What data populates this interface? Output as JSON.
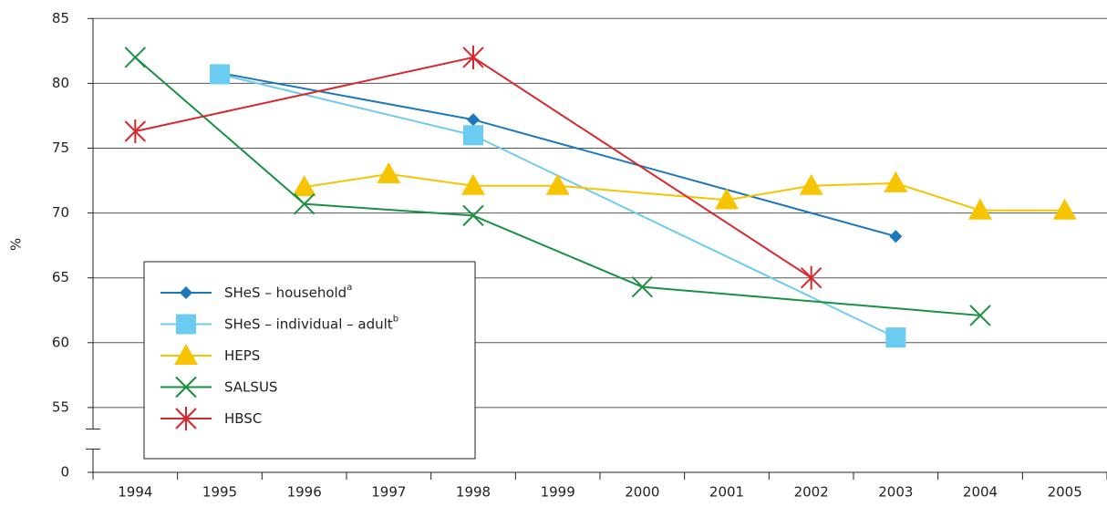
{
  "chart_data": {
    "type": "line",
    "y_label": "%",
    "xlim": [
      1993.5,
      2005.5
    ],
    "xticks": [
      1994,
      1995,
      1996,
      1997,
      1998,
      1999,
      2000,
      2001,
      2002,
      2003,
      2004,
      2005
    ],
    "ylim": [
      0,
      85
    ],
    "y_axis_break": [
      0,
      50
    ],
    "yticks": [
      0,
      55,
      60,
      65,
      70,
      75,
      80,
      85
    ],
    "grid": true,
    "legend": "lower left",
    "series": [
      {
        "name": "SHeS – household",
        "name_sup": "a",
        "color": "#1b78bd",
        "marker": "diamond",
        "x": [
          1995,
          1998,
          2003
        ],
        "values": [
          80.8,
          77.2,
          68.2
        ]
      },
      {
        "name": "SHeS – individual – adult",
        "name_sup": "b",
        "color": "#6ccbf0",
        "marker": "square",
        "x": [
          1995,
          1998,
          2003
        ],
        "values": [
          80.7,
          76,
          60.4
        ]
      },
      {
        "name": "HEPS",
        "color": "#f6c400",
        "marker": "triangle",
        "x": [
          1996,
          1997,
          1998,
          1999,
          2001,
          2002,
          2003,
          2004,
          2005
        ],
        "values": [
          72,
          73,
          72.1,
          72.1,
          71,
          72.1,
          72.3,
          70.2,
          70.2
        ]
      },
      {
        "name": "SALSUS",
        "color": "#1a9142",
        "marker": "x",
        "x": [
          1994,
          1996,
          1998,
          2000,
          2004
        ],
        "values": [
          82,
          70.7,
          69.8,
          64.3,
          62.1
        ]
      },
      {
        "name": "HBSC",
        "color": "#d9272e",
        "marker": "star",
        "x": [
          1994,
          1998,
          2002
        ],
        "values": [
          76.3,
          82,
          65
        ]
      }
    ]
  }
}
